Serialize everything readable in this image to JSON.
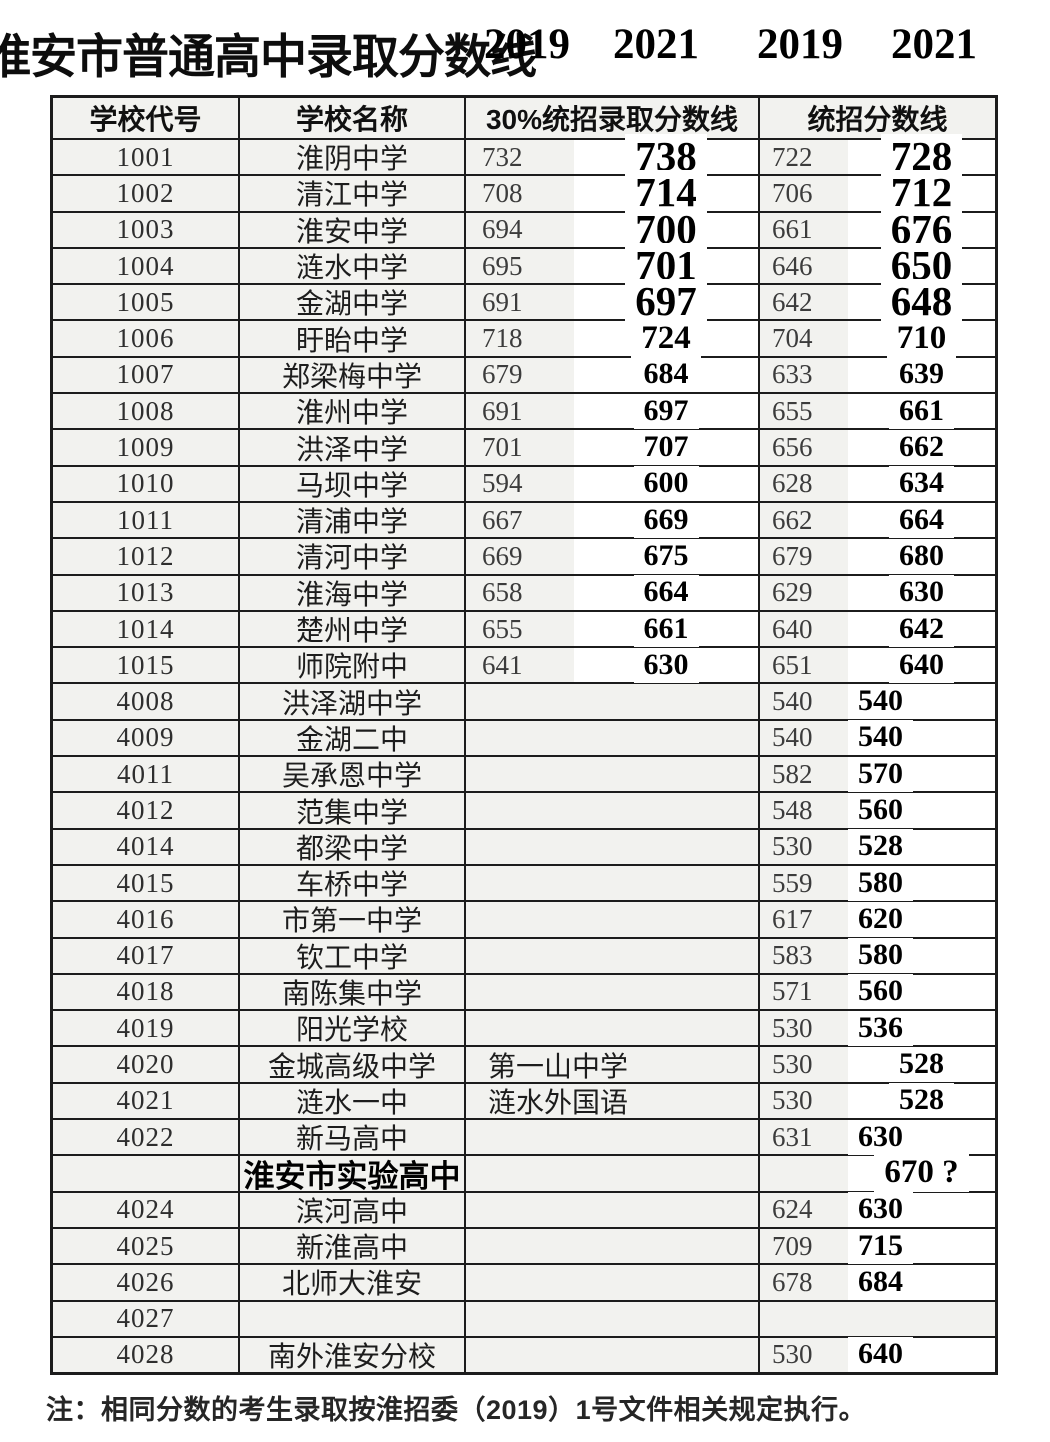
{
  "title": {
    "text": "淮安市普通高中录取分数线",
    "years": [
      "2019",
      "2021",
      "2019",
      "2021"
    ]
  },
  "table": {
    "headers": [
      "学校代号",
      "学校名称",
      "30%统招录取分数线",
      "统招分数线"
    ],
    "rows": [
      {
        "code": "1001",
        "name": "淮阴中学",
        "a19": "732",
        "a21": "738",
        "b19": "722",
        "b21": "728",
        "sz": "xl"
      },
      {
        "code": "1002",
        "name": "清江中学",
        "a19": "708",
        "a21": "714",
        "b19": "706",
        "b21": "712",
        "sz": "xl"
      },
      {
        "code": "1003",
        "name": "淮安中学",
        "a19": "694",
        "a21": "700",
        "b19": "661",
        "b21": "676",
        "sz": "xl"
      },
      {
        "code": "1004",
        "name": "涟水中学",
        "a19": "695",
        "a21": "701",
        "b19": "646",
        "b21": "650",
        "sz": "xl"
      },
      {
        "code": "1005",
        "name": "金湖中学",
        "a19": "691",
        "a21": "697",
        "b19": "642",
        "b21": "648",
        "sz": "xl"
      },
      {
        "code": "1006",
        "name": "盱眙中学",
        "a19": "718",
        "a21": "724",
        "b19": "704",
        "b21": "710",
        "sz": "lg"
      },
      {
        "code": "1007",
        "name": "郑梁梅中学",
        "a19": "679",
        "a21": "684",
        "b19": "633",
        "b21": "639",
        "sz": "md"
      },
      {
        "code": "1008",
        "name": "淮州中学",
        "a19": "691",
        "a21": "697",
        "b19": "655",
        "b21": "661",
        "sz": "md"
      },
      {
        "code": "1009",
        "name": "洪泽中学",
        "a19": "701",
        "a21": "707",
        "b19": "656",
        "b21": "662",
        "sz": "md"
      },
      {
        "code": "1010",
        "name": "马坝中学",
        "a19": "594",
        "a21": "600",
        "b19": "628",
        "b21": "634",
        "sz": "md"
      },
      {
        "code": "1011",
        "name": "清浦中学",
        "a19": "667",
        "a21": "669",
        "b19": "662",
        "b21": "664",
        "sz": "md"
      },
      {
        "code": "1012",
        "name": "清河中学",
        "a19": "669",
        "a21": "675",
        "b19": "679",
        "b21": "680",
        "sz": "md"
      },
      {
        "code": "1013",
        "name": "淮海中学",
        "a19": "658",
        "a21": "664",
        "b19": "629",
        "b21": "630",
        "sz": "md"
      },
      {
        "code": "1014",
        "name": "楚州中学",
        "a19": "655",
        "a21": "661",
        "b19": "640",
        "b21": "642",
        "sz": "md"
      },
      {
        "code": "1015",
        "name": "师院附中",
        "a19": "641",
        "a21": "630",
        "b19": "651",
        "b21": "640",
        "sz": "md"
      },
      {
        "code": "4008",
        "name": "洪泽湖中学",
        "b19": "540",
        "b21": "540",
        "sz": "md",
        "bpos": "left"
      },
      {
        "code": "4009",
        "name": "金湖二中",
        "b19": "540",
        "b21": "540",
        "sz": "md",
        "bpos": "left"
      },
      {
        "code": "4011",
        "name": "吴承恩中学",
        "b19": "582",
        "b21": "570",
        "sz": "md",
        "bpos": "left"
      },
      {
        "code": "4012",
        "name": "范集中学",
        "b19": "548",
        "b21": "560",
        "sz": "md",
        "bpos": "left"
      },
      {
        "code": "4014",
        "name": "都梁中学",
        "b19": "530",
        "b21": "528",
        "sz": "md",
        "bpos": "left"
      },
      {
        "code": "4015",
        "name": "车桥中学",
        "b19": "559",
        "b21": "580",
        "sz": "md",
        "bpos": "left"
      },
      {
        "code": "4016",
        "name": "市第一中学",
        "b19": "617",
        "b21": "620",
        "sz": "md",
        "bpos": "left"
      },
      {
        "code": "4017",
        "name": "钦工中学",
        "b19": "583",
        "b21": "580",
        "sz": "md",
        "bpos": "left"
      },
      {
        "code": "4018",
        "name": "南陈集中学",
        "b19": "571",
        "b21": "560",
        "sz": "md",
        "bpos": "left"
      },
      {
        "code": "4019",
        "name": "阳光学校",
        "b19": "530",
        "b21": "536",
        "sz": "md",
        "bpos": "left"
      },
      {
        "code": "4020",
        "name": "金城高级中学",
        "alt": "第一山中学",
        "b19": "530",
        "b21": "528",
        "sz": "md"
      },
      {
        "code": "4021",
        "name": "涟水一中",
        "alt": "涟水外国语",
        "b19": "530",
        "b21": "528",
        "sz": "md"
      },
      {
        "code": "4022",
        "name": "新马高中",
        "b19": "631",
        "b21": "630",
        "sz": "md",
        "bpos": "left"
      },
      {
        "code": "",
        "name": "淮安市实验高中",
        "name_bold": true,
        "b19": "",
        "b21": "670 ?",
        "sz": "lg"
      },
      {
        "code": "4024",
        "name": "滨河高中",
        "b19": "624",
        "b21": "630",
        "sz": "md",
        "bpos": "left"
      },
      {
        "code": "4025",
        "name": "新淮高中",
        "b19": "709",
        "b21": "715",
        "sz": "md",
        "bpos": "left"
      },
      {
        "code": "4026",
        "name": "北师大淮安",
        "b19": "678",
        "b21": "684",
        "sz": "md",
        "bpos": "left"
      },
      {
        "code": "4027",
        "name": ""
      },
      {
        "code": "4028",
        "name": "南外淮安分校",
        "b19": "530",
        "b21": "640",
        "sz": "md",
        "bpos": "left"
      }
    ]
  },
  "note": "注：相同分数的考生录取按淮招委（2019）1号文件相关规定执行。"
}
